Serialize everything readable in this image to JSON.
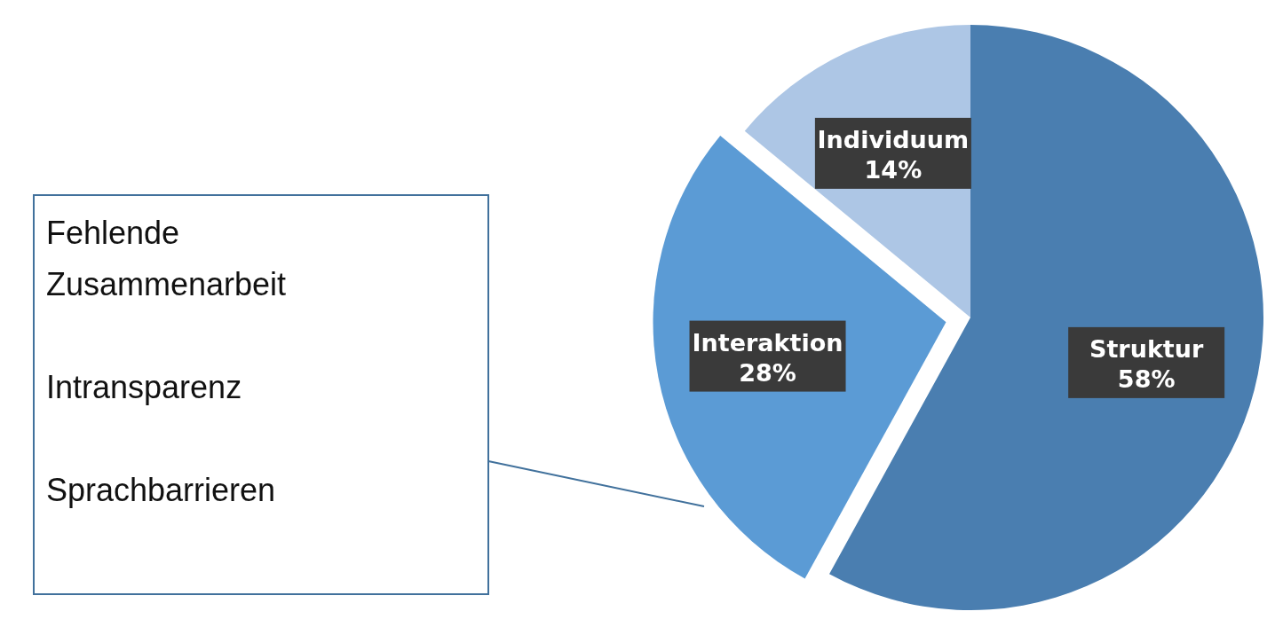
{
  "chart_data": {
    "type": "pie",
    "categories": [
      "Struktur",
      "Interaktion",
      "Individuum"
    ],
    "values": [
      58,
      28,
      14
    ],
    "colors": [
      "#4a7eb0",
      "#5b9bd5",
      "#adc6e5"
    ],
    "value_labels": [
      "58%",
      "28%",
      "14%"
    ],
    "annotations": [
      "Fehlende Zusammenarbeit",
      "Intransparenz",
      "Sprachbarrieren"
    ]
  }
}
